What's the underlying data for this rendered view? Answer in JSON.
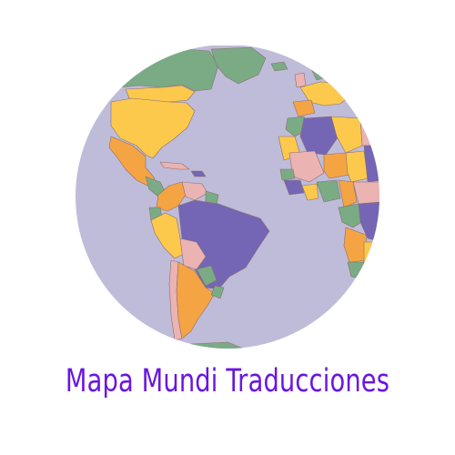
{
  "brand": {
    "name": "Mapa Mundi Traducciones"
  },
  "logo": {
    "icon": "world-globe-icon",
    "ocean_color": "#bfbcd9",
    "land_colors": [
      "#7466b4",
      "#f5a444",
      "#fdc94c",
      "#ebb3b2",
      "#7aab85"
    ]
  },
  "colors": {
    "text": "#6a16e0",
    "background": "#ffffff"
  }
}
